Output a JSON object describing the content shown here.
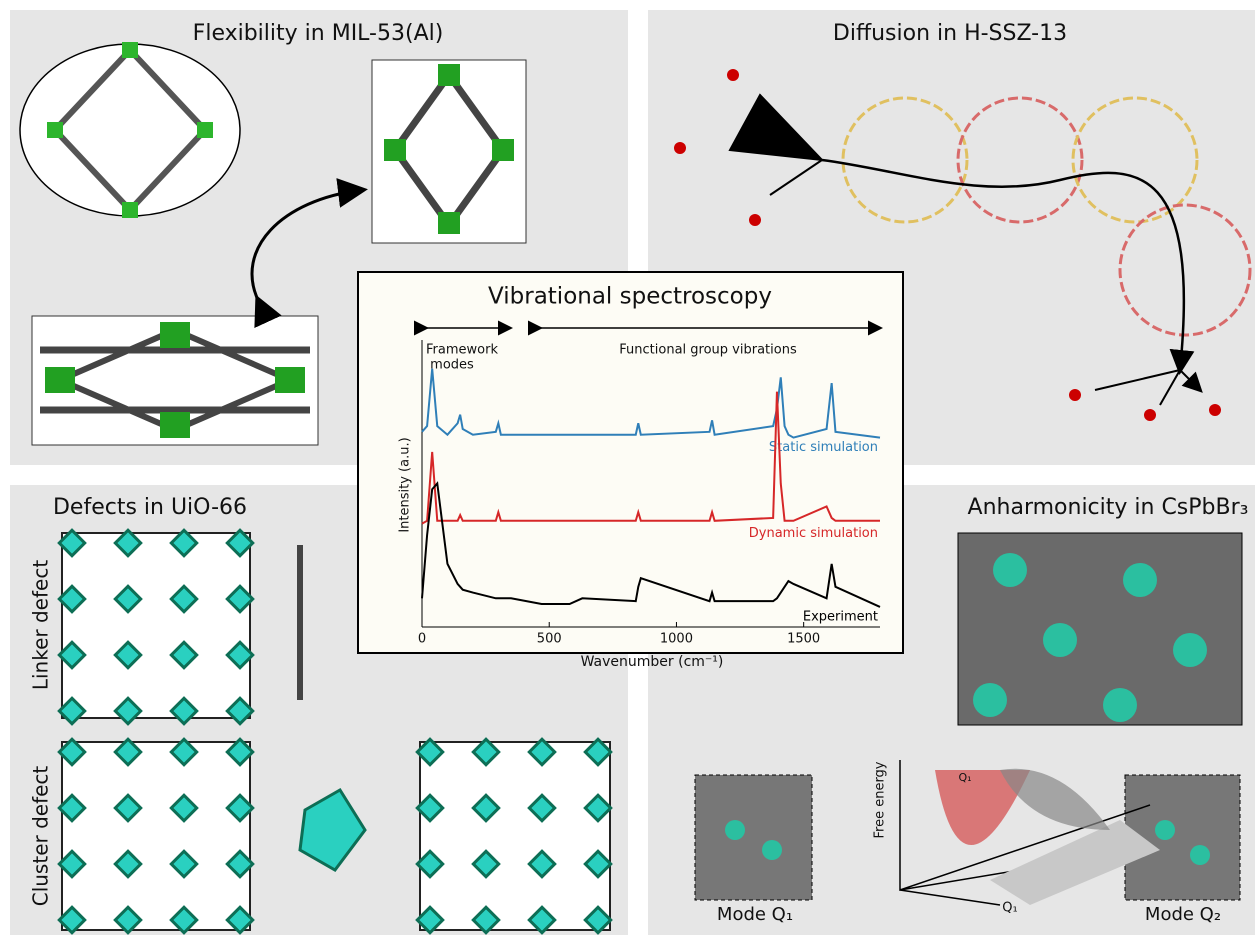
{
  "panels": [
    {
      "title": "Flexibility in MIL-53(Al)"
    },
    {
      "title": "Diffusion in H-SSZ-13"
    },
    {
      "title": "Defects in UiO-66",
      "labels": [
        "Linker defect",
        "Cluster defect"
      ]
    },
    {
      "title": "Anharmonicity in CsPbBr₃",
      "labels": [
        "Mode Q₁",
        "Free energy",
        "Q₁",
        "Q₁",
        "Mode Q₂"
      ]
    }
  ],
  "chart_data": {
    "type": "line",
    "title": "Vibrational spectroscopy",
    "annotations": [
      "Framework",
      "modes",
      "Functional group vibrations"
    ],
    "x_label": "Wavenumber (cm⁻¹)",
    "y_label": "Intensity (a.u.)",
    "xlim": [
      0,
      1800
    ],
    "xticks": [
      0,
      500,
      1000,
      1500
    ],
    "ylim": [
      0,
      1
    ],
    "x": [
      0,
      20,
      40,
      60,
      100,
      140,
      150,
      160,
      200,
      290,
      300,
      310,
      350,
      470,
      580,
      630,
      840,
      850,
      860,
      1130,
      1140,
      1150,
      1380,
      1395,
      1410,
      1425,
      1440,
      1460,
      1590,
      1610,
      1625,
      1800
    ],
    "series": [
      {
        "name": "Static simulation",
        "color": "#2f7fb8",
        "values": [
          0.68,
          0.7,
          0.9,
          0.7,
          0.67,
          0.71,
          0.74,
          0.69,
          0.67,
          0.68,
          0.71,
          0.67,
          0.67,
          0.67,
          0.67,
          0.67,
          0.67,
          0.71,
          0.67,
          0.68,
          0.72,
          0.67,
          0.7,
          0.76,
          0.87,
          0.7,
          0.67,
          0.66,
          0.69,
          0.85,
          0.68,
          0.66
        ]
      },
      {
        "name": "Dynamic simulation",
        "color": "#d62728",
        "values": [
          0.36,
          0.37,
          0.61,
          0.37,
          0.37,
          0.37,
          0.39,
          0.37,
          0.37,
          0.37,
          0.4,
          0.37,
          0.37,
          0.37,
          0.37,
          0.37,
          0.37,
          0.4,
          0.37,
          0.37,
          0.4,
          0.37,
          0.38,
          0.82,
          0.5,
          0.37,
          0.37,
          0.37,
          0.42,
          0.38,
          0.37,
          0.37
        ]
      },
      {
        "name": "Experiment",
        "color": "#000000",
        "values": [
          0.1,
          0.32,
          0.48,
          0.5,
          0.22,
          0.15,
          0.14,
          0.13,
          0.12,
          0.1,
          0.1,
          0.1,
          0.1,
          0.08,
          0.08,
          0.1,
          0.09,
          0.14,
          0.17,
          0.09,
          0.12,
          0.09,
          0.09,
          0.1,
          0.12,
          0.14,
          0.16,
          0.15,
          0.1,
          0.22,
          0.14,
          0.07
        ]
      }
    ]
  }
}
